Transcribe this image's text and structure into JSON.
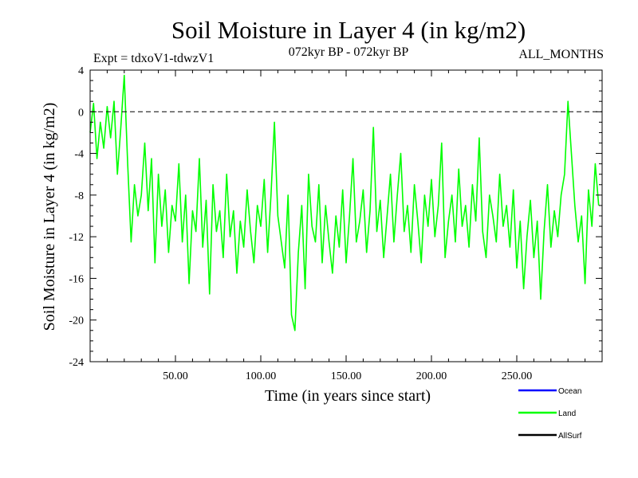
{
  "colors": {
    "ocean": "#0000ff",
    "land": "#00ff00",
    "allsurf": "#000000",
    "zero_line": "#000000",
    "axis": "#000000"
  },
  "chart_data": {
    "type": "line",
    "title": "Soil Moisture in Layer 4 (in kg/m2)",
    "subtitle_left": "Expt = tdxoV1-tdwzV1",
    "subtitle_center": "072kyr BP - 072kyr BP",
    "subtitle_right": "ALL_MONTHS",
    "xlabel": "Time (in years since start)",
    "ylabel": "Soil Moisture in Layer 4 (in kg/m2)",
    "xlim": [
      0,
      300
    ],
    "ylim": [
      -24,
      4
    ],
    "xticks": [
      50,
      100,
      150,
      200,
      250
    ],
    "xtick_labels": [
      "50.00",
      "100.00",
      "150.00",
      "200.00",
      "250.00"
    ],
    "yticks": [
      4,
      0,
      -4,
      -8,
      -12,
      -16,
      -20,
      -24
    ],
    "ytick_labels": [
      "4",
      "0",
      "-4",
      "-8",
      "-12",
      "-16",
      "-20",
      "-24"
    ],
    "reference_line": {
      "y": 0,
      "style": "dashed"
    },
    "legend": {
      "position": "bottom-right",
      "entries": [
        {
          "name": "Ocean",
          "color": "#0000ff"
        },
        {
          "name": "Land",
          "color": "#00ff00"
        },
        {
          "name": "AllSurf",
          "color": "#000000"
        }
      ]
    },
    "series": [
      {
        "name": "Land",
        "color": "#00ff00",
        "x": [
          0,
          2,
          4,
          6,
          8,
          10,
          12,
          14,
          16,
          18,
          20,
          22,
          24,
          26,
          28,
          30,
          32,
          34,
          36,
          38,
          40,
          42,
          44,
          46,
          48,
          50,
          52,
          54,
          56,
          58,
          60,
          62,
          64,
          66,
          68,
          70,
          72,
          74,
          76,
          78,
          80,
          82,
          84,
          86,
          88,
          90,
          92,
          94,
          96,
          98,
          100,
          102,
          104,
          106,
          108,
          110,
          112,
          114,
          116,
          118,
          120,
          122,
          124,
          126,
          128,
          130,
          132,
          134,
          136,
          138,
          140,
          142,
          144,
          146,
          148,
          150,
          152,
          154,
          156,
          158,
          160,
          162,
          164,
          166,
          168,
          170,
          172,
          174,
          176,
          178,
          180,
          182,
          184,
          186,
          188,
          190,
          192,
          194,
          196,
          198,
          200,
          202,
          204,
          206,
          208,
          210,
          212,
          214,
          216,
          218,
          220,
          222,
          224,
          226,
          228,
          230,
          232,
          234,
          236,
          238,
          240,
          242,
          244,
          246,
          248,
          250,
          252,
          254,
          256,
          258,
          260,
          262,
          264,
          266,
          268,
          270,
          272,
          274,
          276,
          278,
          280,
          282,
          284,
          286,
          288,
          290,
          292,
          294,
          296,
          298
        ],
        "values": [
          -2.0,
          0.8,
          -4.5,
          -1.0,
          -3.5,
          0.5,
          -2.5,
          1.0,
          -6.0,
          -1.5,
          3.5,
          -5.0,
          -12.5,
          -7.0,
          -10.0,
          -8.0,
          -3.0,
          -9.5,
          -4.5,
          -14.5,
          -6.0,
          -11.0,
          -7.5,
          -13.5,
          -9.0,
          -10.5,
          -5.0,
          -12.5,
          -8.0,
          -16.5,
          -9.5,
          -11.5,
          -4.5,
          -13.0,
          -8.5,
          -17.5,
          -7.0,
          -11.5,
          -9.5,
          -14.0,
          -6.0,
          -12.0,
          -9.5,
          -15.5,
          -10.5,
          -13.0,
          -7.5,
          -11.5,
          -14.5,
          -9.0,
          -11.0,
          -6.5,
          -13.5,
          -8.0,
          -1.0,
          -10.0,
          -12.5,
          -15.0,
          -8.0,
          -19.5,
          -21.0,
          -13.5,
          -9.0,
          -17.0,
          -6.0,
          -11.0,
          -12.5,
          -7.0,
          -14.5,
          -9.0,
          -12.5,
          -15.5,
          -10.0,
          -13.0,
          -7.5,
          -14.5,
          -10.0,
          -4.5,
          -12.5,
          -10.5,
          -7.5,
          -13.5,
          -9.5,
          -1.5,
          -11.5,
          -8.5,
          -14.0,
          -10.0,
          -6.0,
          -12.5,
          -8.0,
          -4.0,
          -11.5,
          -9.0,
          -13.5,
          -7.0,
          -10.5,
          -14.5,
          -8.0,
          -11.0,
          -6.5,
          -12.0,
          -9.0,
          -3.0,
          -14.0,
          -10.5,
          -8.0,
          -12.5,
          -5.5,
          -11.0,
          -9.0,
          -13.0,
          -7.0,
          -10.5,
          -2.5,
          -11.5,
          -14.0,
          -8.0,
          -10.0,
          -12.5,
          -6.0,
          -11.0,
          -9.0,
          -13.0,
          -7.5,
          -15.0,
          -10.5,
          -17.0,
          -12.0,
          -8.5,
          -14.0,
          -10.5,
          -18.0,
          -11.5,
          -7.0,
          -13.0,
          -9.5,
          -12.0,
          -8.0,
          -6.0,
          1.0,
          -4.0,
          -9.0,
          -12.5,
          -10.0,
          -16.5,
          -7.5,
          -11.0,
          -5.0,
          -9.0
        ]
      }
    ]
  }
}
